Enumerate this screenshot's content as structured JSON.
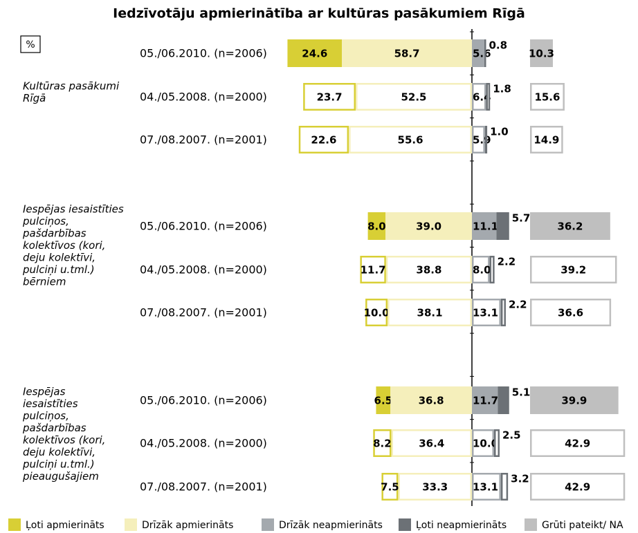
{
  "chart_data": {
    "type": "diverging_bar",
    "title": "Iedzīvotāju apmierinātība ar kultūras pasākumiem Rīgā",
    "unit_label": "%",
    "groups": [
      {
        "label_lines": [
          "Kultūras pasākumi",
          "Rīgā"
        ]
      },
      {
        "label_lines": [
          "Iespējas iesaistīties",
          "pulciņos,",
          "pašdarbības",
          "kolektīvos (kori,",
          "deju kolektīvi,",
          "pulciņi u.tml.)",
          "bērniem"
        ]
      },
      {
        "label_lines": [
          "Iespējas",
          "iesaistīties",
          "pulciņos,",
          "pašdarbības",
          "kolektīvos (kori,",
          "deju kolektīvi,",
          "pulciņi u.tml.)",
          "pieaugušajiem"
        ]
      }
    ],
    "categories": [
      "05./06.2010. (n=2006)",
      "04./05.2008. (n=2000)",
      "07./08.2007. (n=2001)",
      "05./06.2010. (n=2006)",
      "04./05.2008. (n=2000)",
      "07./08.2007. (n=2001)",
      "05./06.2010. (n=2006)",
      "04./05.2008. (n=2000)",
      "07./08.2007. (n=2001)"
    ],
    "series": [
      {
        "name": "Ļoti apmierināts",
        "color": "#d8cf35",
        "side": "left",
        "values": [
          24.6,
          23.7,
          22.6,
          8.0,
          11.7,
          10.0,
          6.5,
          8.2,
          7.5
        ],
        "value_labels": [
          "24.6",
          "23.7",
          "22.6",
          "8.0",
          "11.7",
          "10.0",
          "6.5",
          "8.2",
          "7.5"
        ]
      },
      {
        "name": "Drīzāk apmierināts",
        "color": "#f5efbb",
        "side": "left",
        "values": [
          58.7,
          52.5,
          55.6,
          39.0,
          38.8,
          38.1,
          36.8,
          36.4,
          33.3
        ],
        "value_labels": [
          "58.7",
          "52.5",
          "55.6",
          "39.0",
          "38.8",
          "38.1",
          "36.8",
          "36.4",
          "33.3"
        ]
      },
      {
        "name": "Drīzāk neapmierināts",
        "color": "#a4a9ae",
        "side": "right",
        "values": [
          5.6,
          6.4,
          5.9,
          11.1,
          8.0,
          13.1,
          11.7,
          10.0,
          13.1
        ],
        "value_labels": [
          "5.6",
          "6.4",
          "5.9",
          "11.1",
          "8.0",
          "13.1",
          "11.7",
          "10.0",
          "13.1"
        ]
      },
      {
        "name": "Ļoti neapmierināts",
        "color": "#6c7176",
        "side": "right",
        "values": [
          0.8,
          1.8,
          1.0,
          5.7,
          2.2,
          2.2,
          5.1,
          2.5,
          3.2
        ],
        "value_labels": [
          "0.8",
          "1.8",
          "1.0",
          "5.7",
          "2.2",
          "2.2",
          "5.1",
          "2.5",
          "3.2"
        ]
      },
      {
        "name": "Grūti pateikt/ NA",
        "color": "#bfbfbf",
        "side": "na",
        "values": [
          10.3,
          15.6,
          14.9,
          36.2,
          39.2,
          36.6,
          39.9,
          42.9,
          42.9
        ],
        "value_labels": [
          "10.3",
          "15.6",
          "14.9",
          "36.2",
          "39.2",
          "36.6",
          "39.9",
          "42.9",
          "42.9"
        ]
      }
    ]
  }
}
